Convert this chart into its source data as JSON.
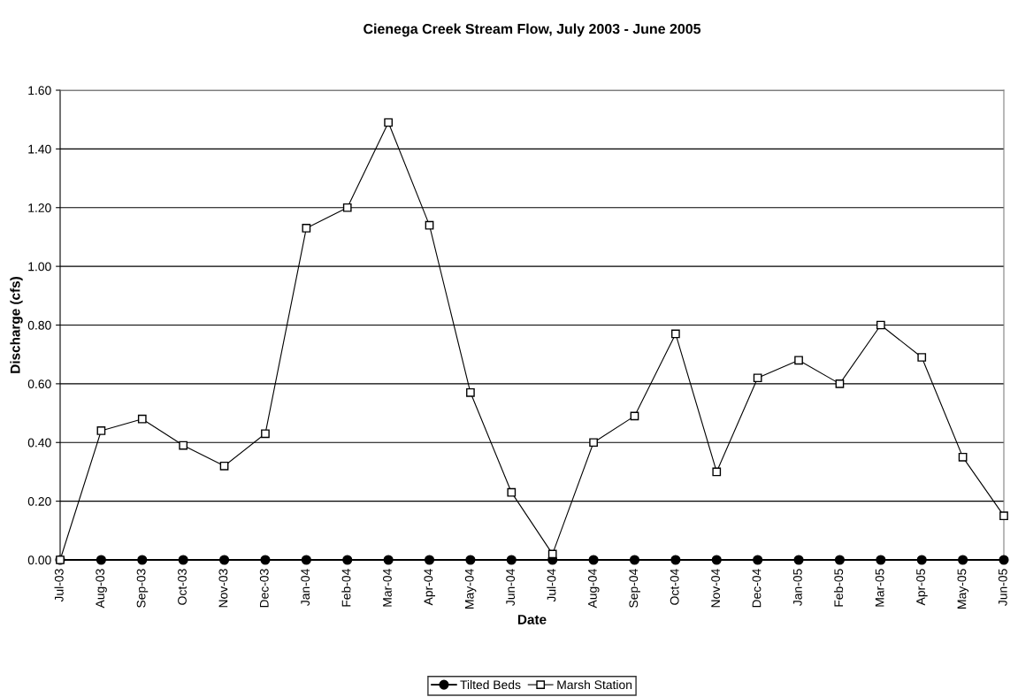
{
  "chart_data": {
    "type": "line",
    "title": "Cienega Creek Stream Flow, July 2003 - June 2005",
    "xlabel": "Date",
    "ylabel": "Discharge (cfs)",
    "categories": [
      "Jul-03",
      "Aug-03",
      "Sep-03",
      "Oct-03",
      "Nov-03",
      "Dec-03",
      "Jan-04",
      "Feb-04",
      "Mar-04",
      "Apr-04",
      "May-04",
      "Jun-04",
      "Jul-04",
      "Aug-04",
      "Sep-04",
      "Oct-04",
      "Nov-04",
      "Dec-04",
      "Jan-05",
      "Feb-05",
      "Mar-05",
      "Apr-05",
      "May-05",
      "Jun-05"
    ],
    "series": [
      {
        "name": "Tilted Beds",
        "color": "#000000",
        "marker": "circle",
        "values": [
          0,
          0,
          0,
          0,
          0,
          0,
          0,
          0,
          0,
          0,
          0,
          0,
          0,
          0,
          0,
          0,
          0,
          0,
          0,
          0,
          0,
          0,
          0,
          0
        ]
      },
      {
        "name": "Marsh Station",
        "color": "#000000",
        "marker": "square",
        "values": [
          0.0,
          0.44,
          0.48,
          0.39,
          0.32,
          0.43,
          1.13,
          1.2,
          1.49,
          1.14,
          0.57,
          0.23,
          0.02,
          0.4,
          0.49,
          0.77,
          0.3,
          0.62,
          0.68,
          0.6,
          0.8,
          0.69,
          0.35,
          0.15
        ]
      }
    ],
    "ylim": [
      0,
      1.6
    ],
    "yticks": [
      {
        "value": 0,
        "label": "0.00"
      },
      {
        "value": 0.2,
        "label": "0.20"
      },
      {
        "value": 0.4,
        "label": "0.40"
      },
      {
        "value": 0.6,
        "label": "0.60"
      },
      {
        "value": 0.8,
        "label": "0.80"
      },
      {
        "value": 1.0,
        "label": "1.00"
      },
      {
        "value": 1.2,
        "label": "1.20"
      },
      {
        "value": 1.4,
        "label": "1.40"
      },
      {
        "value": 1.6,
        "label": "1.60"
      }
    ],
    "grid": "y",
    "legend": "bottom",
    "line_style": "solid"
  }
}
